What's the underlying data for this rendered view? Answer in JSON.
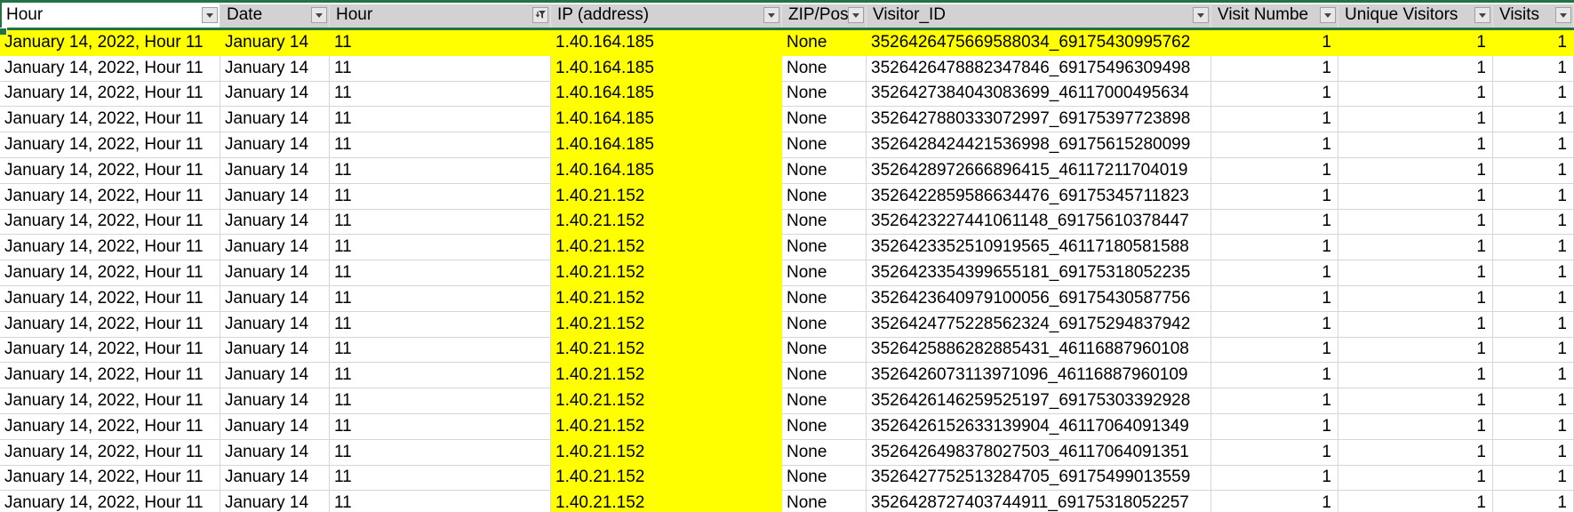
{
  "app": {
    "description": "Spreadsheet with autofiltered table, header row selected, IP column and first row highlighted"
  },
  "colors": {
    "highlight_yellow": "#FFFF00",
    "selection_green": "#217346",
    "header_gray": "#D2D2D2",
    "gridline_gray": "#D6D6D6"
  },
  "table": {
    "columns": [
      {
        "label": "Hour",
        "filter": "dropdown",
        "active_cell": true,
        "align": "left",
        "column_highlight": false
      },
      {
        "label": "Date",
        "filter": "dropdown",
        "active_cell": false,
        "align": "left",
        "column_highlight": false
      },
      {
        "label": "Hour",
        "filter": "funnel",
        "active_cell": false,
        "align": "left",
        "column_highlight": false
      },
      {
        "label": "IP (address)",
        "filter": "dropdown",
        "active_cell": false,
        "align": "left",
        "column_highlight": true
      },
      {
        "label": "ZIP/Pos",
        "filter": "dropdown",
        "active_cell": false,
        "align": "left",
        "column_highlight": false
      },
      {
        "label": "Visitor_ID",
        "filter": "dropdown",
        "active_cell": false,
        "align": "left",
        "column_highlight": false
      },
      {
        "label": "Visit Numbe",
        "filter": "dropdown",
        "active_cell": false,
        "align": "right",
        "column_highlight": false
      },
      {
        "label": "Unique Visitors",
        "filter": "dropdown",
        "active_cell": false,
        "align": "right",
        "column_highlight": false
      },
      {
        "label": "Visits",
        "filter": "dropdown",
        "active_cell": false,
        "align": "right",
        "column_highlight": false
      }
    ],
    "highlighted_row_index": 0,
    "rows": [
      [
        "January 14, 2022, Hour 11",
        "January 14",
        "11",
        "1.40.164.185",
        "None",
        "3526426475669588034_69175430995762",
        "1",
        "1",
        "1"
      ],
      [
        "January 14, 2022, Hour 11",
        "January 14",
        "11",
        "1.40.164.185",
        "None",
        "3526426478882347846_69175496309498",
        "1",
        "1",
        "1"
      ],
      [
        "January 14, 2022, Hour 11",
        "January 14",
        "11",
        "1.40.164.185",
        "None",
        "3526427384043083699_46117000495634",
        "1",
        "1",
        "1"
      ],
      [
        "January 14, 2022, Hour 11",
        "January 14",
        "11",
        "1.40.164.185",
        "None",
        "3526427880333072997_69175397723898",
        "1",
        "1",
        "1"
      ],
      [
        "January 14, 2022, Hour 11",
        "January 14",
        "11",
        "1.40.164.185",
        "None",
        "3526428424421536998_69175615280099",
        "1",
        "1",
        "1"
      ],
      [
        "January 14, 2022, Hour 11",
        "January 14",
        "11",
        "1.40.164.185",
        "None",
        "3526428972666896415_46117211704019",
        "1",
        "1",
        "1"
      ],
      [
        "January 14, 2022, Hour 11",
        "January 14",
        "11",
        "1.40.21.152",
        "None",
        "3526422859586634476_69175345711823",
        "1",
        "1",
        "1"
      ],
      [
        "January 14, 2022, Hour 11",
        "January 14",
        "11",
        "1.40.21.152",
        "None",
        "3526423227441061148_69175610378447",
        "1",
        "1",
        "1"
      ],
      [
        "January 14, 2022, Hour 11",
        "January 14",
        "11",
        "1.40.21.152",
        "None",
        "3526423352510919565_46117180581588",
        "1",
        "1",
        "1"
      ],
      [
        "January 14, 2022, Hour 11",
        "January 14",
        "11",
        "1.40.21.152",
        "None",
        "3526423354399655181_69175318052235",
        "1",
        "1",
        "1"
      ],
      [
        "January 14, 2022, Hour 11",
        "January 14",
        "11",
        "1.40.21.152",
        "None",
        "3526423640979100056_69175430587756",
        "1",
        "1",
        "1"
      ],
      [
        "January 14, 2022, Hour 11",
        "January 14",
        "11",
        "1.40.21.152",
        "None",
        "3526424775228562324_69175294837942",
        "1",
        "1",
        "1"
      ],
      [
        "January 14, 2022, Hour 11",
        "January 14",
        "11",
        "1.40.21.152",
        "None",
        "3526425886282885431_46116887960108",
        "1",
        "1",
        "1"
      ],
      [
        "January 14, 2022, Hour 11",
        "January 14",
        "11",
        "1.40.21.152",
        "None",
        "3526426073113971096_46116887960109",
        "1",
        "1",
        "1"
      ],
      [
        "January 14, 2022, Hour 11",
        "January 14",
        "11",
        "1.40.21.152",
        "None",
        "3526426146259525197_69175303392928",
        "1",
        "1",
        "1"
      ],
      [
        "January 14, 2022, Hour 11",
        "January 14",
        "11",
        "1.40.21.152",
        "None",
        "3526426152633139904_46117064091349",
        "1",
        "1",
        "1"
      ],
      [
        "January 14, 2022, Hour 11",
        "January 14",
        "11",
        "1.40.21.152",
        "None",
        "3526426498378027503_46117064091351",
        "1",
        "1",
        "1"
      ],
      [
        "January 14, 2022, Hour 11",
        "January 14",
        "11",
        "1.40.21.152",
        "None",
        "3526427752513284705_69175499013559",
        "1",
        "1",
        "1"
      ],
      [
        "January 14, 2022, Hour 11",
        "January 14",
        "11",
        "1.40.21.152",
        "None",
        "3526428727403744911_69175318052257",
        "1",
        "1",
        "1"
      ]
    ]
  }
}
